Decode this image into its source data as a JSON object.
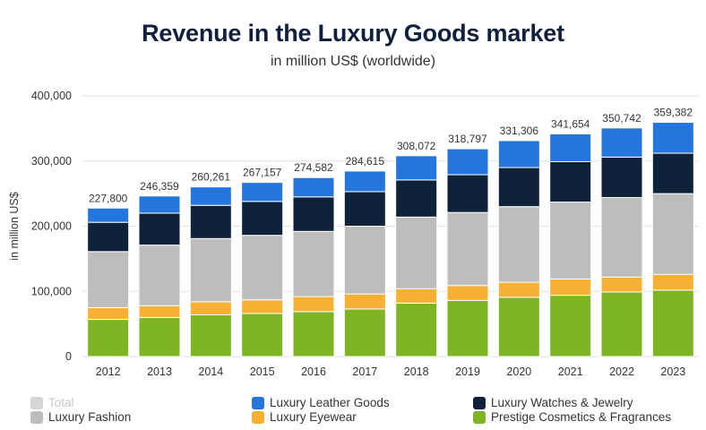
{
  "chart_data": {
    "type": "bar",
    "stacked": true,
    "title": "Revenue in the Luxury Goods market",
    "subtitle": "in million US$ (worldwide)",
    "xlabel": "",
    "ylabel": "in million US$",
    "ylim": [
      0,
      400000
    ],
    "yticks": [
      0,
      100000,
      200000,
      300000,
      400000
    ],
    "ytick_labels": [
      "0",
      "100,000",
      "200,000",
      "300,000",
      "400,000"
    ],
    "grid": true,
    "categories": [
      "2012",
      "2013",
      "2014",
      "2015",
      "2016",
      "2017",
      "2018",
      "2019",
      "2020",
      "2021",
      "2022",
      "2023"
    ],
    "totals": [
      227800,
      246359,
      260261,
      267157,
      274582,
      284615,
      308072,
      318797,
      331306,
      341654,
      350742,
      359382
    ],
    "total_labels": [
      "227,800",
      "246,359",
      "260,261",
      "267,157",
      "274,582",
      "284,615",
      "308,072",
      "318,797",
      "331,306",
      "341,654",
      "350,742",
      "359,382"
    ],
    "series": [
      {
        "name": "Prestige Cosmetics & Fragrances",
        "color": "#7fb524",
        "values": [
          57000,
          60000,
          64000,
          66000,
          69000,
          73000,
          82000,
          86000,
          91000,
          94000,
          99000,
          102000
        ]
      },
      {
        "name": "Luxury Eyewear",
        "color": "#f7b032",
        "values": [
          18000,
          18000,
          20000,
          21000,
          23000,
          23000,
          22000,
          23000,
          23000,
          25000,
          23000,
          24000
        ]
      },
      {
        "name": "Luxury Fashion",
        "color": "#bdbdbd",
        "values": [
          86000,
          93000,
          97000,
          99000,
          100000,
          104000,
          110000,
          112000,
          116000,
          118000,
          122000,
          124000
        ]
      },
      {
        "name": "Luxury Watches & Jewelry",
        "color": "#0e2239",
        "values": [
          45000,
          49000,
          51000,
          52000,
          53000,
          53000,
          57000,
          58000,
          60000,
          62000,
          62000,
          62000
        ]
      },
      {
        "name": "Luxury Leather Goods",
        "color": "#2475de",
        "values": [
          21800,
          26359,
          28261,
          29157,
          29582,
          31615,
          37072,
          39797,
          41306,
          42654,
          44742,
          47382
        ]
      }
    ]
  },
  "legend": {
    "total": {
      "label": "Total",
      "color": "#d6d6d6"
    },
    "leather": {
      "label": "Luxury Leather Goods",
      "color": "#2475de"
    },
    "watches": {
      "label": "Luxury Watches & Jewelry",
      "color": "#0e2239"
    },
    "fashion": {
      "label": "Luxury Fashion",
      "color": "#bdbdbd"
    },
    "eyewear": {
      "label": "Luxury Eyewear",
      "color": "#f7b032"
    },
    "cosmetics": {
      "label": "Prestige Cosmetics & Fragrances",
      "color": "#7fb524"
    }
  }
}
